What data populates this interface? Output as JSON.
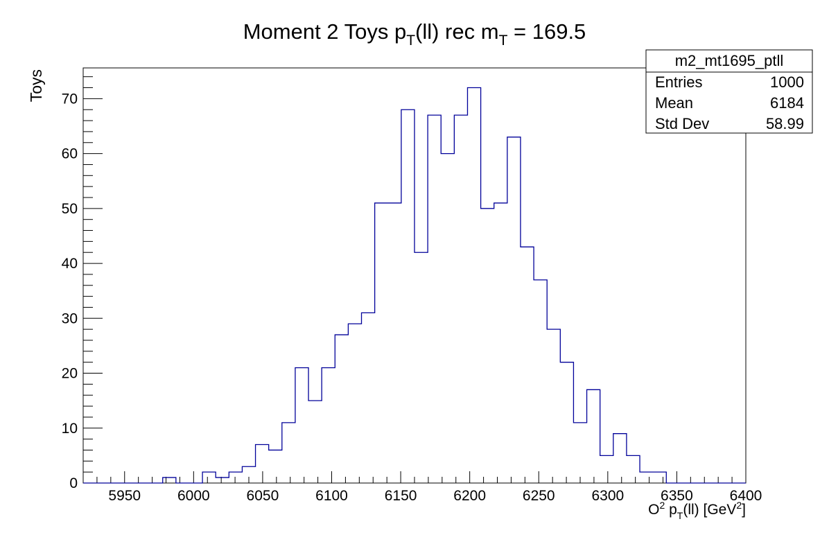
{
  "chart_data": {
    "type": "histogram",
    "title": "Moment 2 Toys  p_T(ll) rec  m_T = 169.5",
    "xlabel": "O^2 p_T(ll) [GeV^2]",
    "ylabel": "Toys",
    "xlim": [
      5920,
      6400
    ],
    "ylim": [
      0,
      75.6
    ],
    "x_ticks": [
      5950,
      6000,
      6050,
      6100,
      6150,
      6200,
      6250,
      6300,
      6350,
      6400
    ],
    "y_ticks": [
      0,
      10,
      20,
      30,
      40,
      50,
      60,
      70
    ],
    "bin_width": 9.6,
    "bins_start": 5920,
    "values": [
      0,
      0,
      0,
      0,
      0,
      0,
      1,
      0,
      0,
      2,
      1,
      2,
      3,
      7,
      6,
      11,
      21,
      15,
      21,
      27,
      29,
      31,
      51,
      51,
      68,
      42,
      67,
      60,
      67,
      72,
      50,
      51,
      63,
      43,
      37,
      28,
      22,
      11,
      17,
      5,
      9,
      5,
      2,
      2,
      0,
      0,
      0,
      0,
      0,
      0
    ],
    "line_color": "#000099"
  },
  "stats_box": {
    "name": "m2_mt1695_ptll",
    "rows": [
      {
        "label": "Entries",
        "value": "1000"
      },
      {
        "label": "Mean",
        "value": "6184"
      },
      {
        "label": "Std Dev",
        "value": "58.99"
      }
    ]
  }
}
